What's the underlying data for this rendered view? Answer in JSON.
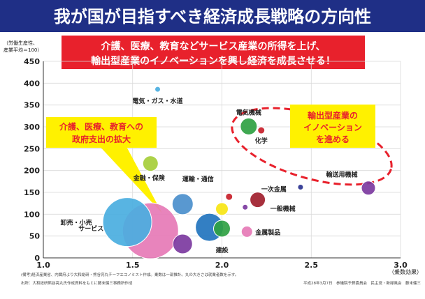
{
  "header": {
    "title": "我が国が目指すべき経済成長戦略の方向性",
    "bg_color": "#1f2f86"
  },
  "banner": {
    "line1": "介護、医療、教育などサービス産業の所得を上げ、",
    "line2": "輸出型産業のイノベーションを興し経済を成長させる！",
    "bg_color": "#e8212c"
  },
  "chart_data": {
    "type": "bubble",
    "ylabel_lines": [
      "（労働生産性、",
      "産業平均＝100）"
    ],
    "xlabel": "（乗数効果）",
    "xlim": [
      1.0,
      3.0
    ],
    "ylim": [
      0,
      450
    ],
    "xticks": [
      "1.0",
      "1.5",
      "2.0",
      "2.5",
      "3.0"
    ],
    "yticks": [
      "0",
      "50",
      "100",
      "150",
      "200",
      "250",
      "300",
      "350",
      "400",
      "450"
    ],
    "grid": true,
    "points": [
      {
        "label": "電気・ガス・水道",
        "x": 1.64,
        "y": 386,
        "size": 4,
        "color": "#4aaee0"
      },
      {
        "label": "金融・保険",
        "x": 1.6,
        "y": 216,
        "size": 11,
        "color": "#a6ce3a"
      },
      {
        "label": "運輸・通信",
        "x": 1.78,
        "y": 123,
        "size": 15,
        "color": "#4b8fcc"
      },
      {
        "label": "卸売・小売",
        "x": 1.47,
        "y": 82,
        "size": 35,
        "color": "#4aaee0"
      },
      {
        "label": "サービス",
        "x": 1.6,
        "y": 62,
        "size": 40,
        "color": "#e67ab6"
      },
      {
        "label": "建設",
        "x": 1.93,
        "y": 70,
        "size": 20,
        "color": "#2274be"
      },
      {
        "label": "",
        "x": 1.78,
        "y": 32,
        "size": 14,
        "color": "#7c3aa0"
      },
      {
        "label": "",
        "x": 2.0,
        "y": 67,
        "size": 12,
        "color": "#2fa142"
      },
      {
        "label": "",
        "x": 2.0,
        "y": 112,
        "size": 9,
        "color": "#f7e514"
      },
      {
        "label": "",
        "x": 2.04,
        "y": 140,
        "size": 5,
        "color": "#c8202a"
      },
      {
        "label": "",
        "x": 2.13,
        "y": 116,
        "size": 4,
        "color": "#7c3aa0"
      },
      {
        "label": "金属製品",
        "x": 2.14,
        "y": 60,
        "size": 8,
        "color": "#e67ab6"
      },
      {
        "label": "一般機械",
        "x": 2.2,
        "y": 133,
        "size": 11,
        "color": "#a01e2c"
      },
      {
        "label": "一次金属",
        "x": 2.44,
        "y": 162,
        "size": 4,
        "color": "#2a3290"
      },
      {
        "label": "電気機械",
        "x": 2.15,
        "y": 301,
        "size": 12,
        "color": "#2fa142"
      },
      {
        "label": "化学",
        "x": 2.22,
        "y": 292,
        "size": 5,
        "color": "#c8202a"
      },
      {
        "label": "輸送用機械",
        "x": 2.82,
        "y": 160,
        "size": 10,
        "color": "#7c3aa0"
      }
    ],
    "callout_left": {
      "lines": [
        "介護、医療、教育への",
        "政府支出の拡大"
      ],
      "bg_color": "#fff100",
      "text_color": "#e8212c"
    },
    "callout_right": {
      "lines": [
        "輸出型産業の",
        "イノベーション",
        "を進める"
      ],
      "bg_color": "#fff100",
      "text_color": "#e8212c"
    }
  },
  "footer": {
    "note": "(備考)経済産業省、内閣府より大和総研・熊谷亮丸チーフエコノミスト作成。乗数は一部推計。丸の大きさは就業者数を示す。",
    "source": "出所：大和総研熊谷亮丸氏作成資料をもとに藤末健三事務所作成",
    "credit": "平成28年3月7日　参議院予算委員会　民主党・新緑風会　藤末健三"
  }
}
